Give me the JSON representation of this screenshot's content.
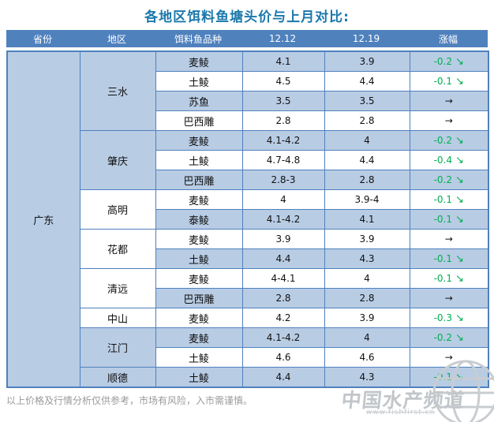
{
  "chart_data": {
    "type": "table",
    "title": "各地区饵料鱼塘头价与上月对比:",
    "columns": [
      "省份",
      "地区",
      "饵料鱼品种",
      "12.12",
      "12.19",
      "涨幅"
    ],
    "province": "广东",
    "regions": [
      {
        "name": "三水",
        "rows": [
          {
            "species": "麦鲮",
            "p1": "4.1",
            "p2": "3.9",
            "change": "-0.2",
            "trend": "down"
          },
          {
            "species": "土鲮",
            "p1": "4.5",
            "p2": "4.4",
            "change": "-0.1",
            "trend": "down"
          },
          {
            "species": "苏鱼",
            "p1": "3.5",
            "p2": "3.5",
            "change": "",
            "trend": "flat"
          },
          {
            "species": "巴西雕",
            "p1": "2.8",
            "p2": "2.8",
            "change": "",
            "trend": "flat"
          }
        ]
      },
      {
        "name": "肇庆",
        "rows": [
          {
            "species": "麦鲮",
            "p1": "4.1-4.2",
            "p2": "4",
            "change": "-0.2",
            "trend": "down"
          },
          {
            "species": "土鲮",
            "p1": "4.7-4.8",
            "p2": "4.4",
            "change": "-0.4",
            "trend": "down"
          },
          {
            "species": "巴西雕",
            "p1": "2.8-3",
            "p2": "2.8",
            "change": "-0.2",
            "trend": "down"
          }
        ]
      },
      {
        "name": "高明",
        "rows": [
          {
            "species": "麦鲮",
            "p1": "4",
            "p2": "3.9-4",
            "change": "-0.1",
            "trend": "down"
          },
          {
            "species": "泰鲮",
            "p1": "4.1-4.2",
            "p2": "4.1",
            "change": "-0.1",
            "trend": "down"
          }
        ]
      },
      {
        "name": "花都",
        "rows": [
          {
            "species": "麦鲮",
            "p1": "3.9",
            "p2": "3.9",
            "change": "",
            "trend": "flat"
          },
          {
            "species": "土鲮",
            "p1": "4.4",
            "p2": "4.3",
            "change": "-0.1",
            "trend": "down"
          }
        ]
      },
      {
        "name": "清远",
        "rows": [
          {
            "species": "麦鲮",
            "p1": "4-4.1",
            "p2": "4",
            "change": "-0.1",
            "trend": "down"
          },
          {
            "species": "巴西雕",
            "p1": "2.8",
            "p2": "2.8",
            "change": "",
            "trend": "flat"
          }
        ]
      },
      {
        "name": "中山",
        "rows": [
          {
            "species": "麦鲮",
            "p1": "4.2",
            "p2": "3.9",
            "change": "-0.3",
            "trend": "down"
          }
        ]
      },
      {
        "name": "江门",
        "rows": [
          {
            "species": "麦鲮",
            "p1": "4.1-4.2",
            "p2": "4",
            "change": "-0.2",
            "trend": "down"
          },
          {
            "species": "土鲮",
            "p1": "4.6",
            "p2": "4.6",
            "change": "",
            "trend": "flat"
          }
        ]
      },
      {
        "name": "顺德",
        "rows": [
          {
            "species": "土鲮",
            "p1": "4.4",
            "p2": "4.3",
            "change": "-0.1",
            "trend": "down"
          }
        ]
      }
    ]
  },
  "icons": {
    "down_arrow": "↘",
    "flat_arrow": "→"
  },
  "footer": {
    "disclaimer": "以上价格及行情分析仅供参考，市场有风险，入市需谨慎。"
  },
  "watermark": {
    "title": "中国水产频道",
    "url": "www.fishfirst.cn"
  },
  "colors": {
    "header_bg": "#4f81bd",
    "row_alt_blue": "#b8cce4",
    "border_blue": "#4f81bd",
    "change_down_green": "#00b050",
    "title_blue": "#1b78ab"
  }
}
